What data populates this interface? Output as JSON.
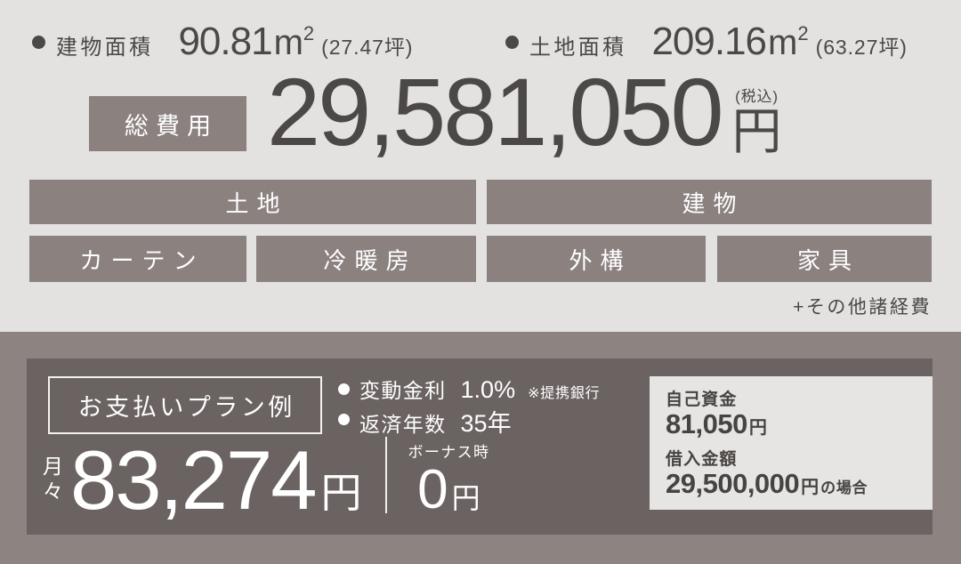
{
  "colors": {
    "top_background": "#e3e2e1",
    "bar_fill": "#8b8280",
    "dark_text": "#4b4846",
    "bottom_band": "#8d8482",
    "panel": "#6b6361",
    "white_text": "#ffffff",
    "funds_box_background": "#e6e5e3"
  },
  "areas": {
    "building": {
      "label": "建物面積",
      "value": "90.81",
      "unit_base": "m",
      "unit_sup": "2",
      "tsubo": "(27.47坪)"
    },
    "land": {
      "label": "土地面積",
      "value": "209.16",
      "unit_base": "m",
      "unit_sup": "2",
      "tsubo": "(63.27坪)"
    }
  },
  "total": {
    "label": "総費用",
    "amount": "29,581,050",
    "tax_note": "(税込)",
    "currency": "円"
  },
  "cost_items": [
    {
      "label": "土地"
    },
    {
      "label": "建物"
    },
    {
      "label": "カーテン"
    },
    {
      "label": "冷暖房"
    },
    {
      "label": "外構"
    },
    {
      "label": "家具"
    }
  ],
  "other_note": "+その他諸経費",
  "plan": {
    "title": "お支払いプラン例",
    "rate": {
      "label": "変動金利",
      "value": "1.0%",
      "note": "※提携銀行"
    },
    "years": {
      "label": "返済年数",
      "value": "35年"
    },
    "monthly": {
      "label_top": "月",
      "label_bottom": "々",
      "amount": "83,274",
      "unit": "円"
    },
    "bonus": {
      "label": "ボーナス時",
      "amount": "0",
      "unit": "円"
    },
    "funds": {
      "own_label": "自己資金",
      "own_value": "81,050",
      "own_unit": "円",
      "loan_label": "借入金額",
      "loan_value": "29,500,000",
      "loan_unit": "円",
      "loan_case": "の場合"
    }
  }
}
